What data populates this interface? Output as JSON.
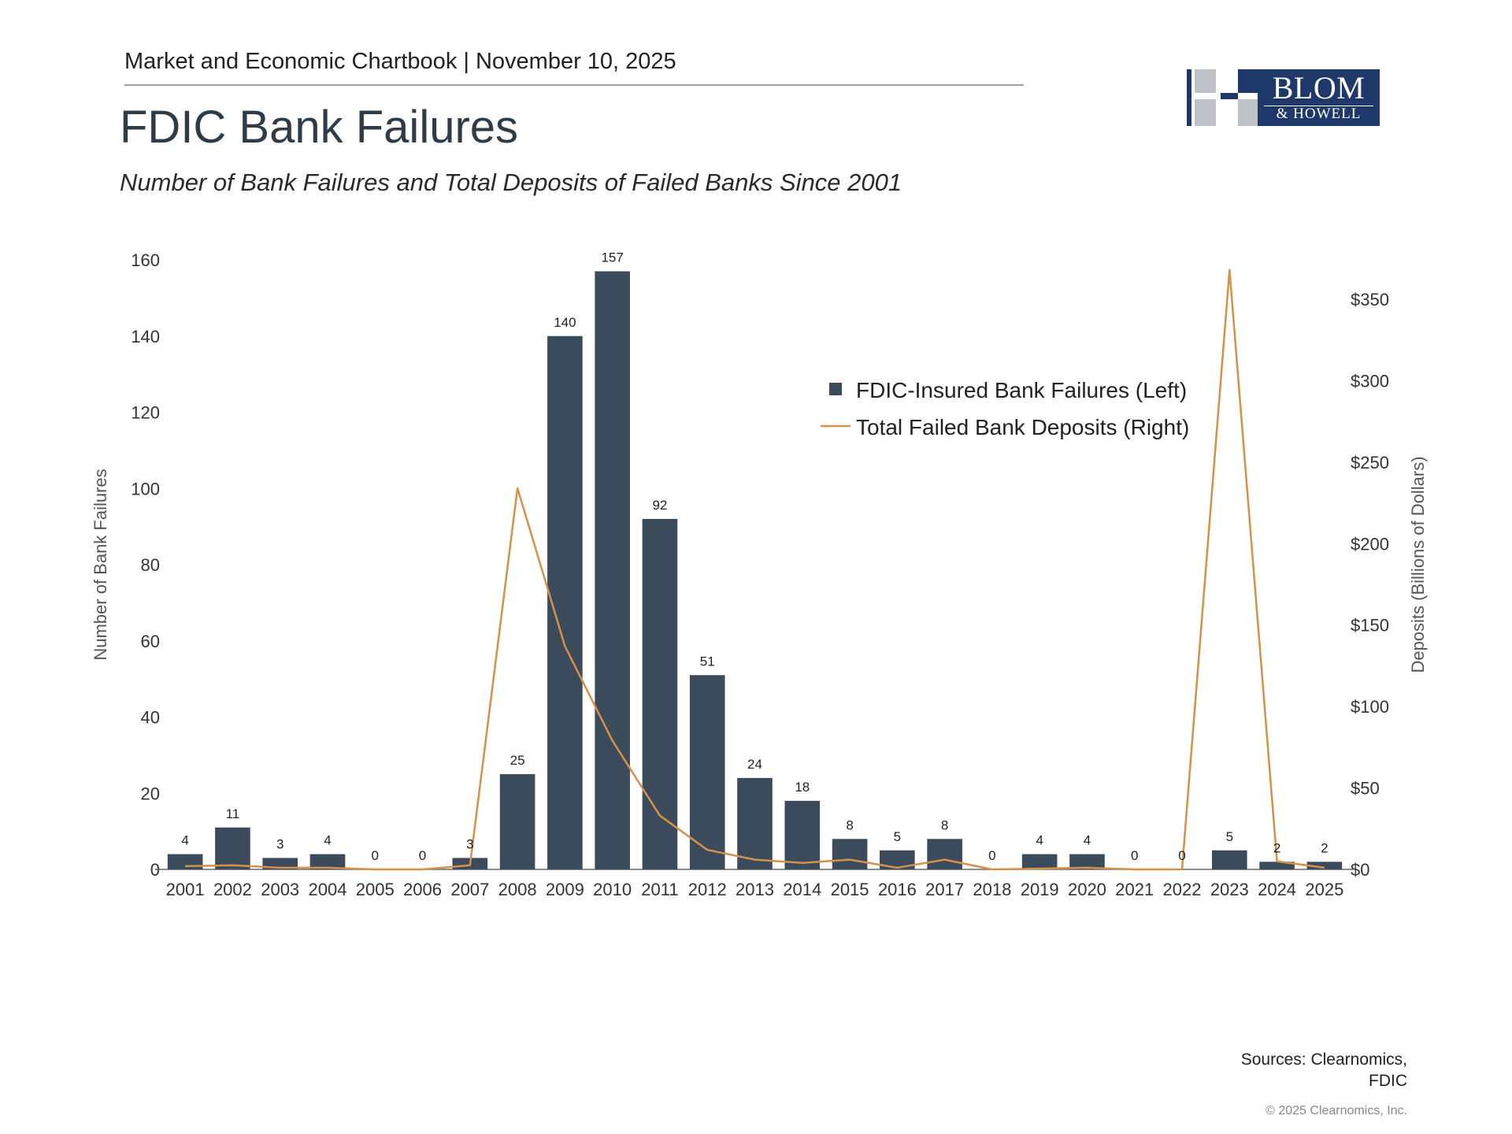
{
  "header": {
    "chartbook": "Market and Economic Chartbook | November 10, 2025",
    "title": "FDIC Bank Failures",
    "subtitle": "Number of Bank Failures and Total Deposits of Failed Banks Since 2001"
  },
  "logo": {
    "name": "BLOM",
    "sub": "& HOWELL",
    "color": "#1d3869"
  },
  "colors": {
    "bar": "#3b4b5b",
    "line": "#d4914a",
    "axis_text": "#333333",
    "axis_title": "#555555"
  },
  "chart_data": {
    "type": "bar",
    "categories": [
      "2001",
      "2002",
      "2003",
      "2004",
      "2005",
      "2006",
      "2007",
      "2008",
      "2009",
      "2010",
      "2011",
      "2012",
      "2013",
      "2014",
      "2015",
      "2016",
      "2017",
      "2018",
      "2019",
      "2020",
      "2021",
      "2022",
      "2023",
      "2024",
      "2025"
    ],
    "series": [
      {
        "name": "FDIC-Insured Bank Failures (Left)",
        "type": "bar",
        "axis": "left",
        "values": [
          4,
          11,
          3,
          4,
          0,
          0,
          3,
          25,
          140,
          157,
          92,
          51,
          24,
          18,
          8,
          5,
          8,
          0,
          4,
          4,
          0,
          0,
          5,
          2,
          2
        ],
        "data_labels": [
          "4",
          "11",
          "3",
          "4",
          "0",
          "0",
          "3",
          "25",
          "140",
          "157",
          "92",
          "51",
          "24",
          "18",
          "8",
          "5",
          "8",
          "0",
          "4",
          "4",
          "0",
          "0",
          "5",
          "2",
          "2"
        ]
      },
      {
        "name": "Total Failed Bank Deposits (Right)",
        "type": "line",
        "axis": "right",
        "values": [
          2,
          2.5,
          1,
          1,
          0,
          0,
          2.5,
          234,
          137,
          79,
          33,
          12,
          6,
          4,
          6,
          1,
          6,
          0,
          0.5,
          1,
          0,
          0,
          368,
          5,
          1
        ]
      }
    ],
    "ylabel_left": "Number of Bank Failures",
    "ylabel_right": "Deposits (Billions of Dollars)",
    "ylim_left": [
      0,
      160
    ],
    "yticks_left": [
      0,
      20,
      40,
      60,
      80,
      100,
      120,
      140,
      160
    ],
    "ylim_right": [
      0,
      350
    ],
    "yticks_right": [
      "$0",
      "$50",
      "$100",
      "$150",
      "$200",
      "$250",
      "$300",
      "$350"
    ],
    "legend_position": "top-right",
    "grid": false
  },
  "footer": {
    "sources_line1": "Sources: Clearnomics,",
    "sources_line2": "FDIC",
    "copyright": "© 2025 Clearnomics, Inc."
  }
}
